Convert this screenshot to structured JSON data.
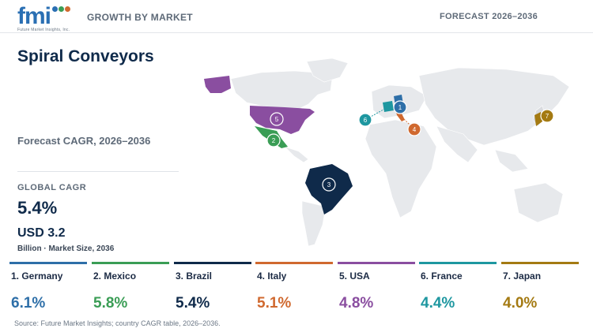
{
  "header": {
    "logo_text": "fmi",
    "logo_tagline": "Future Market Insights, Inc.",
    "left_label": "GROWTH BY MARKET",
    "right_label": "FORECAST 2026–2036"
  },
  "title": "Spiral Conveyors",
  "subtitle": "Forecast CAGR, 2026–2036",
  "global": {
    "label": "GLOBAL CAGR",
    "value": "5.4%",
    "market_size": "USD 3.2",
    "market_size_label": "Billion · Market Size, 2036"
  },
  "colors": {
    "germany": "#2e6fa8",
    "mexico": "#3a9d55",
    "brazil": "#0f2a4a",
    "italy": "#d0692f",
    "usa": "#8a4ea0",
    "france": "#1e97a0",
    "japan": "#a47a12",
    "land": "#e7e9ec"
  },
  "map_markers": [
    {
      "rank": "1",
      "country": "Germany"
    },
    {
      "rank": "2",
      "country": "Mexico"
    },
    {
      "rank": "3",
      "country": "Brazil"
    },
    {
      "rank": "4",
      "country": "Italy"
    },
    {
      "rank": "5",
      "country": "USA"
    },
    {
      "rank": "6",
      "country": "France"
    },
    {
      "rank": "7",
      "country": "Japan"
    }
  ],
  "countries": [
    {
      "label": "1. Germany",
      "value": "6.1%",
      "color": "#2e6fa8"
    },
    {
      "label": "2. Mexico",
      "value": "5.8%",
      "color": "#3a9d55"
    },
    {
      "label": "3. Brazil",
      "value": "5.4%",
      "color": "#0f2a4a"
    },
    {
      "label": "4. Italy",
      "value": "5.1%",
      "color": "#d0692f"
    },
    {
      "label": "5. USA",
      "value": "4.8%",
      "color": "#8a4ea0"
    },
    {
      "label": "6. France",
      "value": "4.4%",
      "color": "#1e97a0"
    },
    {
      "label": "7. Japan",
      "value": "4.0%",
      "color": "#a47a12"
    }
  ],
  "source": "Source: Future Market Insights; country CAGR table, 2026–2036."
}
